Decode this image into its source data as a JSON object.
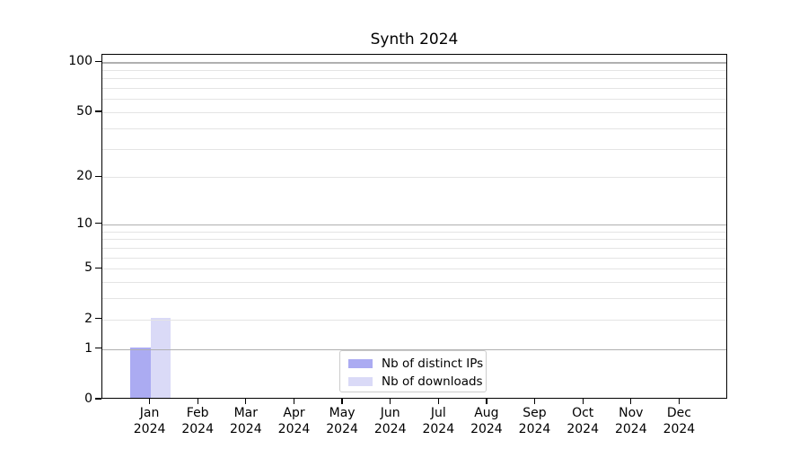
{
  "chart_data": {
    "type": "bar",
    "title": "Synth 2024",
    "categories": [
      "Jan",
      "Feb",
      "Mar",
      "Apr",
      "May",
      "Jun",
      "Jul",
      "Aug",
      "Sep",
      "Oct",
      "Nov",
      "Dec"
    ],
    "category_year_line": "2024",
    "series": [
      {
        "name": "Nb of distinct IPs",
        "color": "#ababf2",
        "values": [
          1,
          0,
          0,
          0,
          0,
          0,
          0,
          0,
          0,
          0,
          0,
          0
        ]
      },
      {
        "name": "Nb of downloads",
        "color": "#dadaf7",
        "values": [
          2,
          0,
          0,
          0,
          0,
          0,
          0,
          0,
          0,
          0,
          0,
          0
        ]
      }
    ],
    "yscale": "log1p",
    "ylim": [
      0,
      111
    ],
    "yticks_labeled": [
      0,
      1,
      2,
      5,
      10,
      20,
      50,
      100
    ],
    "yticks_minor": [
      3,
      4,
      6,
      7,
      8,
      9,
      30,
      40,
      60,
      70,
      80,
      90
    ],
    "yticks_power": [
      1,
      10,
      100
    ],
    "grid": true,
    "legend_position": "lower center",
    "xlabel": "",
    "ylabel": ""
  },
  "colors": {
    "grid_major": "#b0b0b0",
    "grid_minor": "#e4e4e4",
    "axis": "#000000",
    "background": "#ffffff"
  }
}
